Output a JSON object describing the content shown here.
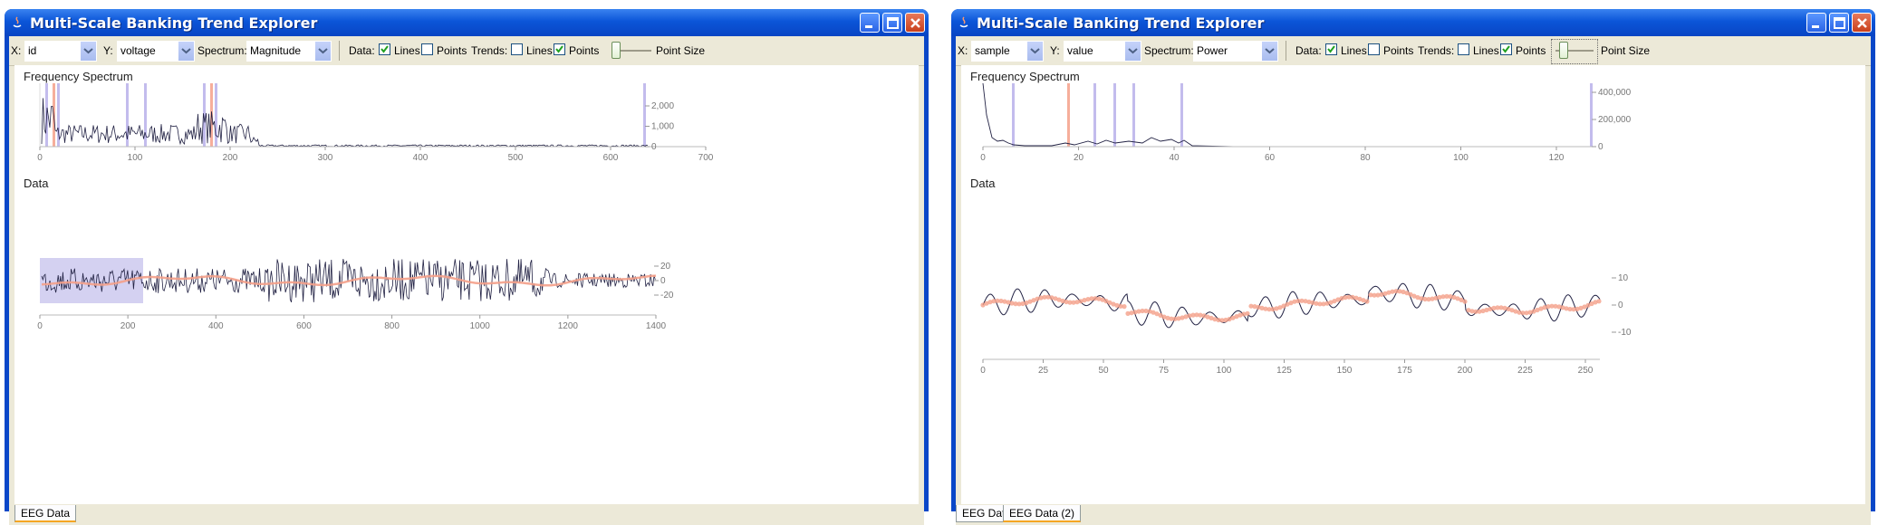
{
  "windows": [
    {
      "title": "Multi-Scale Banking Trend Explorer",
      "toolbar": {
        "x_label": "X:",
        "x_value": "id",
        "y_label": "Y:",
        "y_value": "voltage",
        "spectrum_label": "Spectrum:",
        "spectrum_value": "Magnitude",
        "data_label": "Data:",
        "data_lines_label": "Lines",
        "data_points_label": "Points",
        "data_lines_checked": true,
        "data_points_checked": false,
        "trends_label": "Trends:",
        "trends_lines_label": "Lines",
        "trends_points_label": "Points",
        "trends_lines_checked": false,
        "trends_points_checked": true,
        "point_size_label": "Point Size"
      },
      "spectrum_title": "Frequency Spectrum",
      "data_title": "Data",
      "spectrum_x_ticks": [
        "0",
        "100",
        "200",
        "300",
        "400",
        "500",
        "600",
        "700"
      ],
      "spectrum_y_ticks": [
        "2,000",
        "1,000",
        "0"
      ],
      "data_x_ticks": [
        "0",
        "200",
        "400",
        "600",
        "800",
        "1000",
        "1200",
        "1400"
      ],
      "data_y_ticks": [
        "20",
        "0",
        "-20"
      ],
      "tabs": [
        {
          "label": "EEG Data",
          "active": true
        }
      ]
    },
    {
      "title": "Multi-Scale Banking Trend Explorer",
      "toolbar": {
        "x_label": "X:",
        "x_value": "sample",
        "y_label": "Y:",
        "y_value": "value",
        "spectrum_label": "Spectrum:",
        "spectrum_value": "Power",
        "data_label": "Data:",
        "data_lines_label": "Lines",
        "data_points_label": "Points",
        "data_lines_checked": true,
        "data_points_checked": false,
        "trends_label": "Trends:",
        "trends_lines_label": "Lines",
        "trends_points_label": "Points",
        "trends_lines_checked": false,
        "trends_points_checked": true,
        "point_size_label": "Point Size"
      },
      "spectrum_title": "Frequency Spectrum",
      "data_title": "Data",
      "spectrum_x_ticks": [
        "0",
        "20",
        "40",
        "60",
        "80",
        "100",
        "120"
      ],
      "spectrum_y_ticks": [
        "400,000",
        "200,000",
        "0"
      ],
      "data_x_ticks": [
        "0",
        "25",
        "50",
        "75",
        "100",
        "125",
        "150",
        "175",
        "200",
        "225",
        "250"
      ],
      "data_y_ticks": [
        "10",
        "0",
        "-10"
      ],
      "tabs": [
        {
          "label": "EEG Data",
          "active": false
        },
        {
          "label": "EEG Data (2)",
          "active": true
        }
      ]
    }
  ],
  "colors": {
    "trend": "#f4a08a",
    "marker": "#b8b0ea",
    "marker_selected": "#f4a08a",
    "line": "#222244",
    "selection": "#c9c5ee"
  }
}
